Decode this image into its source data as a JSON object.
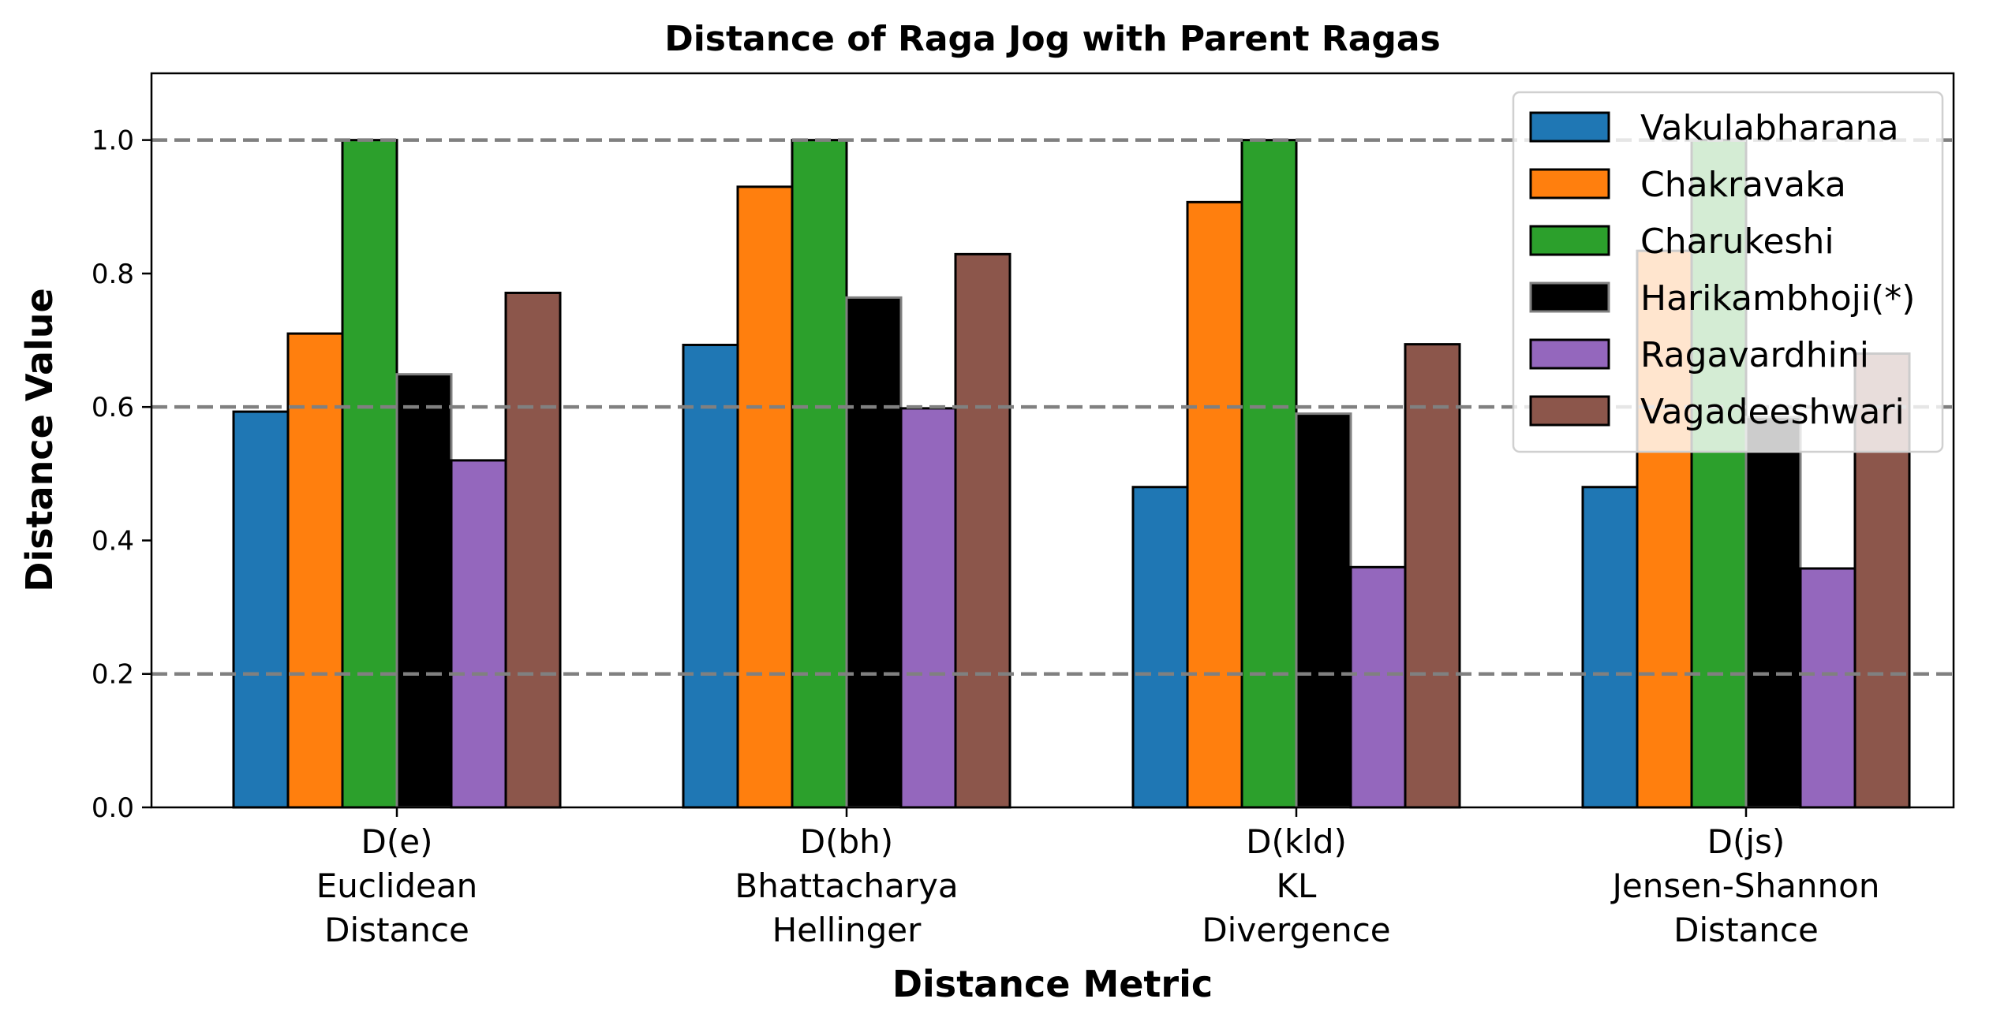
{
  "chart_data": {
    "type": "bar",
    "title": "Distance of Raga Jog with Parent Ragas",
    "xlabel": "Distance Metric",
    "ylabel": "Distance Value",
    "ylim": [
      0,
      1.1
    ],
    "yticks": [
      "0.0",
      "0.2",
      "0.4",
      "0.6",
      "0.8",
      "1.0"
    ],
    "categories": [
      [
        "D(e)",
        "Euclidean",
        "Distance"
      ],
      [
        "D(bh)",
        "Bhattacharya",
        "Hellinger"
      ],
      [
        "D(kld)",
        "KL",
        "Divergence"
      ],
      [
        "D(js)",
        "Jensen-Shannon",
        "Distance"
      ]
    ],
    "series": [
      {
        "name": "Vakulabharana",
        "color": "#1f77b4",
        "values": [
          0.593,
          0.693,
          0.48,
          0.48
        ]
      },
      {
        "name": "Chakravaka",
        "color": "#ff7f0e",
        "values": [
          0.71,
          0.93,
          0.907,
          0.834
        ]
      },
      {
        "name": "Charukeshi",
        "color": "#2ca02c",
        "values": [
          1.0,
          1.0,
          1.0,
          1.0
        ]
      },
      {
        "name": "Harikambhoji(*)",
        "color": "#000000",
        "edge": "#808080",
        "values": [
          0.649,
          0.764,
          0.59,
          0.585
        ]
      },
      {
        "name": "Ragavardhini",
        "color": "#9467bd",
        "values": [
          0.52,
          0.598,
          0.36,
          0.358
        ]
      },
      {
        "name": "Vagadeeshwari",
        "color": "#8c564b",
        "values": [
          0.771,
          0.829,
          0.694,
          0.68
        ]
      }
    ],
    "reference_lines": [
      0.2,
      0.6,
      1.0
    ],
    "grid": false,
    "legend_position": "top-right"
  }
}
